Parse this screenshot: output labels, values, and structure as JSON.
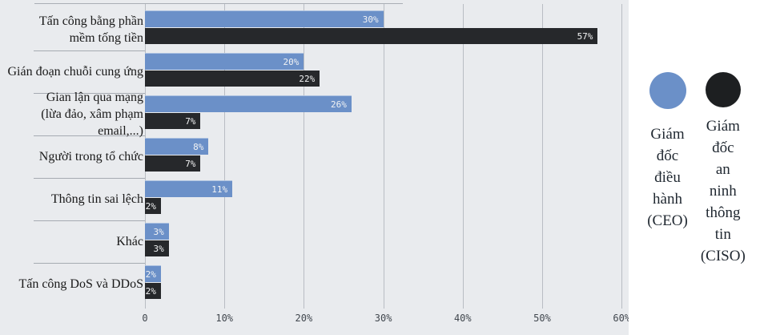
{
  "chart_data": {
    "type": "bar",
    "orientation": "horizontal",
    "title": "",
    "xlabel": "",
    "ylabel": "",
    "xlim": [
      0,
      60
    ],
    "grid": true,
    "x_ticks": [
      "0",
      "10%",
      "20%",
      "30%",
      "40%",
      "50%",
      "60%"
    ],
    "x_tick_values": [
      0,
      10,
      20,
      30,
      40,
      50,
      60
    ],
    "categories": [
      "Tấn công bằng phần mềm tống tiền",
      "Gián đoạn chuỗi cung ứng",
      "Gian lận qua mạng (lừa đảo, xâm phạm email,...)",
      "Người trong tổ chức",
      "Thông tin sai lệch",
      "Khác",
      "Tấn công DoS và DDoS"
    ],
    "category_label_lines": [
      [
        "Tấn công bằng phần",
        "mềm tống tiền"
      ],
      [
        "Gián đoạn chuỗi cung ứng"
      ],
      [
        "Gian lận qua mạng",
        "(lừa đảo, xâm phạm email,...)"
      ],
      [
        "Người trong tổ chức"
      ],
      [
        "Thông tin sai lệch"
      ],
      [
        "Khác"
      ],
      [
        "Tấn công DoS và DDoS"
      ]
    ],
    "series": [
      {
        "name": "Giám đốc điều hành (CEO)",
        "color": "#6b90c8",
        "values": [
          30,
          20,
          26,
          8,
          11,
          3,
          2
        ],
        "value_labels": [
          "30%",
          "20%",
          "26%",
          "8%",
          "11%",
          "3%",
          "2%"
        ]
      },
      {
        "name": "Giám đốc an ninh thông tin (CISO)",
        "color": "#26282b",
        "values": [
          57,
          22,
          7,
          7,
          2,
          3,
          2
        ],
        "value_labels": [
          "57%",
          "22%",
          "7%",
          "7%",
          "2%",
          "3%",
          "2%"
        ]
      }
    ],
    "legend_position": "right"
  },
  "legend": {
    "entries": [
      {
        "id": "ceo",
        "color": "#6b90c8",
        "lines": [
          "Giám",
          "đốc",
          "điều",
          "hành",
          "(CEO)"
        ]
      },
      {
        "id": "ciso",
        "color": "#1d1f21",
        "lines": [
          "Giám",
          "đốc",
          "an",
          "ninh",
          "thông",
          "tin",
          "(CISO)"
        ]
      }
    ]
  },
  "colors": {
    "panel_background": "#e9ebee",
    "gridline": "#b9bdc3",
    "separator": "#a6abb2",
    "bar_ceo": "#6b90c8",
    "bar_ciso": "#26282b",
    "value_text": "#f2f3f4",
    "tick_text": "#41474e",
    "category_text": "#191919"
  }
}
